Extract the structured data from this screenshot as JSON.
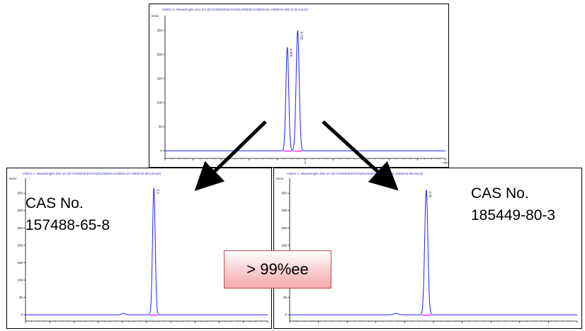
{
  "chart_data": [
    {
      "type": "line",
      "name": "top-chromatogram",
      "header": "VWD1 A, Wavelength=254 nm (D:\\CHEM32\\DATA\\2012\\0802\\A1\\0802A1C-HB8FA5-48X.D (6:1ULD)",
      "ylabel": "mAU",
      "y_ticks": [
        0,
        50,
        100,
        150,
        200,
        250
      ],
      "ylim": [
        -10,
        275
      ],
      "xlim": [
        0,
        10
      ],
      "x_ticks": [
        0,
        1,
        2,
        3,
        4,
        5,
        6,
        7,
        8,
        9,
        10
      ],
      "x_tick_labels": {
        "5": "5",
        "10": "min"
      },
      "peaks": [
        {
          "rt": 4.36,
          "height": 215,
          "width": 0.05,
          "label": "4.356"
        },
        {
          "rt": 4.73,
          "height": 250,
          "width": 0.055,
          "label": "4.732"
        }
      ]
    },
    {
      "type": "line",
      "name": "left-chromatogram",
      "header": "VWD1 A, Wavelength=254 nm (D:\\CHEM32\\DATA\\2012\\0802\\A1\\0802A1C-HB8FA5-48-12ULD)",
      "ylabel": "mAU",
      "y_ticks": [
        0,
        50,
        100,
        150,
        200,
        250,
        300,
        350
      ],
      "ylim": [
        -10,
        385
      ],
      "xlim": [
        0,
        10
      ],
      "x_ticks": [
        0,
        1,
        2,
        3,
        4,
        5,
        6,
        7,
        8,
        9,
        10
      ],
      "peaks": [
        {
          "rt": 5.3,
          "height": 365,
          "width": 0.055,
          "label": "5.3"
        },
        {
          "rt": 4.05,
          "height": 4,
          "width": 0.08,
          "label": ""
        }
      ]
    },
    {
      "type": "line",
      "name": "right-chromatogram",
      "header": "VWD1 A, Wavelength=254 nm (D:\\CHEM32\\DATA\\2012\\0802\\A1\\0802A1C-HB8FA5-48-2ULD)",
      "ylabel": "mAU",
      "y_ticks": [
        0,
        50,
        100,
        150,
        200,
        250,
        300,
        350
      ],
      "ylim": [
        -10,
        385
      ],
      "xlim": [
        0,
        10
      ],
      "x_ticks": [
        0,
        1,
        2,
        3,
        4,
        5,
        6,
        7,
        8,
        9,
        10
      ],
      "peaks": [
        {
          "rt": 4.75,
          "height": 360,
          "width": 0.055,
          "label": "4.75"
        },
        {
          "rt": 3.7,
          "height": 4,
          "width": 0.08,
          "label": ""
        }
      ]
    }
  ],
  "labels": {
    "left_cas_line1": "CAS No.",
    "left_cas_line2": "157488-65-8",
    "right_cas_line1": "CAS No.",
    "right_cas_line2": "185449-80-3",
    "ee": "> 99%ee"
  },
  "colors": {
    "trace": "#2020ff",
    "baseline_marker": "#ff00ff",
    "header_text": "#3030c0",
    "arrow": "#000000",
    "ee_border": "#c0504d"
  }
}
